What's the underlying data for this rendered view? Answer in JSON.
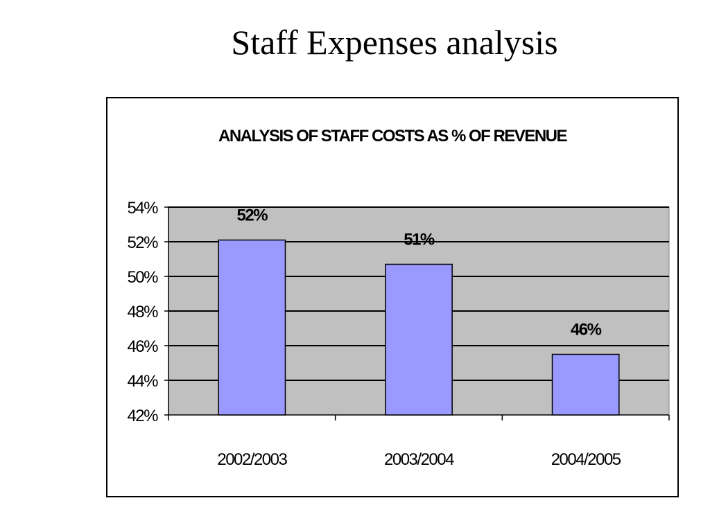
{
  "slide": {
    "title": "Staff Expenses analysis"
  },
  "colors": {
    "plot_background": "#c0c0c0",
    "bar_fill": "#9999ff",
    "bar_stroke": "#000000",
    "gridline": "#000000",
    "text": "#000000"
  },
  "chart_data": {
    "type": "bar",
    "title": "ANALYSIS OF STAFF COSTS AS % OF REVENUE",
    "xlabel": "",
    "ylabel": "",
    "categories": [
      "2002/2003",
      "2003/2004",
      "2004/2005"
    ],
    "values": [
      52.1,
      50.7,
      45.5
    ],
    "data_labels": [
      "52%",
      "51%",
      "46%"
    ],
    "ylim": [
      42,
      54
    ],
    "yticks": [
      42,
      44,
      46,
      48,
      50,
      52,
      54
    ],
    "ytick_labels": [
      "42%",
      "44%",
      "46%",
      "48%",
      "50%",
      "52%",
      "54%"
    ],
    "grid": true,
    "legend": "none"
  }
}
